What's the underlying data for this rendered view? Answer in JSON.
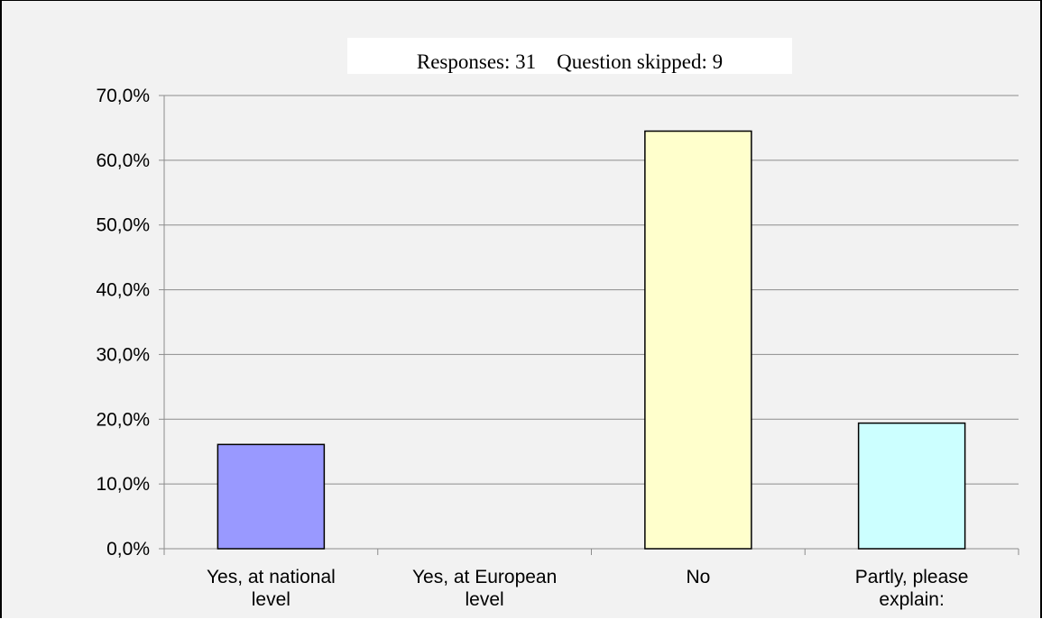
{
  "header": {
    "responses_text": "Responses: 31    Question skipped: 9"
  },
  "chart_data": {
    "type": "bar",
    "categories": [
      [
        "Yes, at national",
        "level"
      ],
      [
        "Yes, at European",
        "level"
      ],
      [
        "No"
      ],
      [
        "Partly, please",
        "explain:"
      ]
    ],
    "values": [
      16.1,
      0.0,
      64.5,
      19.4
    ],
    "colors": [
      "#9999ff",
      "#cc99ff",
      "#ffffcc",
      "#ccffff"
    ],
    "ylim": [
      0,
      70
    ],
    "yticks": [
      0,
      10,
      20,
      30,
      40,
      50,
      60,
      70
    ],
    "ytick_labels": [
      "0,0%",
      "10,0%",
      "20,0%",
      "30,0%",
      "40,0%",
      "50,0%",
      "60,0%",
      "70,0%"
    ],
    "grid": true,
    "title": "",
    "xlabel": "",
    "ylabel": ""
  }
}
